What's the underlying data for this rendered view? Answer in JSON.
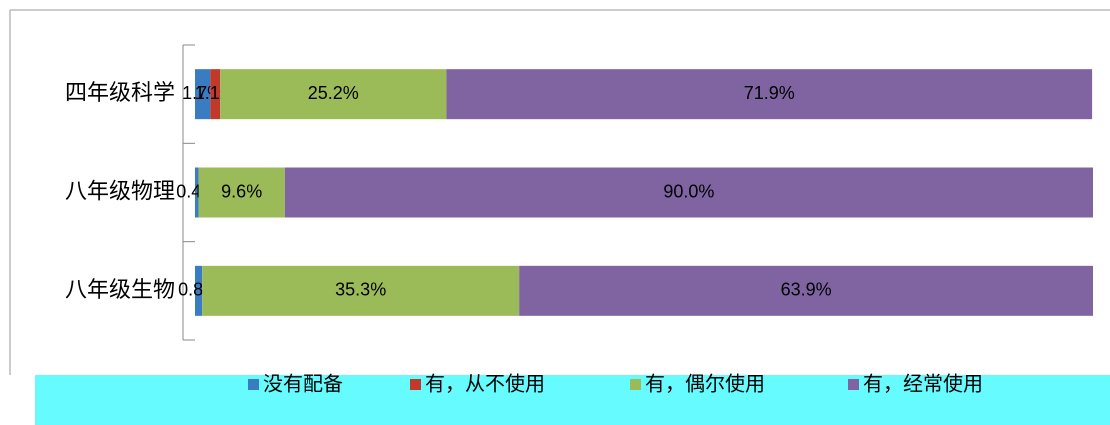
{
  "chart_data": {
    "type": "stacked-barh",
    "categories": [
      "四年级科学",
      "八年级物理",
      "八年级生物"
    ],
    "xlim": [
      0,
      100
    ],
    "legend": "bottom",
    "series": [
      {
        "name": "没有配备",
        "color": "#3a7cc2",
        "values": [
          1.7,
          0.4,
          0.8
        ],
        "value_labels": [
          "1.7%",
          "0.4%",
          "0.8%"
        ]
      },
      {
        "name": "有，从不使用",
        "color": "#c0392b",
        "values": [
          1.1,
          null,
          null
        ],
        "value_labels": [
          "1.1%",
          null,
          null
        ]
      },
      {
        "name": "有，偶尔使用",
        "color": "#9bbb59",
        "values": [
          25.2,
          9.6,
          35.3
        ],
        "value_labels": [
          "25.2%",
          "9.6%",
          "35.3%"
        ]
      },
      {
        "name": "有，经常使用",
        "color": "#8064a2",
        "values": [
          71.9,
          90.0,
          63.9
        ],
        "value_labels": [
          "71.9%",
          "90.0%",
          "63.9%"
        ]
      }
    ]
  }
}
